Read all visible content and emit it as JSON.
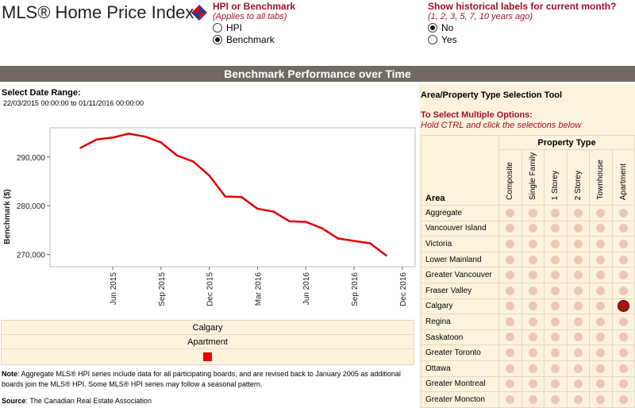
{
  "header": {
    "title": "MLS® Home Price Index",
    "hpi_or_benchmark": {
      "title": "HPI or Benchmark",
      "subtitle": "(Applies to all tabs)",
      "options": [
        {
          "label": "HPI",
          "selected": false
        },
        {
          "label": "Benchmark",
          "selected": true
        }
      ]
    },
    "historical_labels": {
      "title": "Show historical labels for current month?",
      "subtitle": "(1, 2, 3, 5, 7, 10 years ago)",
      "options": [
        {
          "label": "No",
          "selected": true
        },
        {
          "label": "Yes",
          "selected": false
        }
      ]
    }
  },
  "banner": "Benchmark Performance over Time",
  "date_range": {
    "label": "Select Date Range:",
    "value": "22/03/2015 00:00:00 to 01/11/2016 00:00:00"
  },
  "chart_data": {
    "type": "line",
    "title": "",
    "xlabel": "",
    "ylabel": "Benchmark ($)",
    "x_ticks": [
      "Jun 2015",
      "Sep 2015",
      "Dec 2015",
      "Mar 2016",
      "Jun 2016",
      "Sep 2016",
      "Dec 2016"
    ],
    "y_ticks": [
      "270,000",
      "280,000",
      "290,000"
    ],
    "ylim": [
      267500,
      296000
    ],
    "grid": false,
    "series": [
      {
        "name": "",
        "color": "#e00000",
        "x": [
          "2015-04",
          "2015-05",
          "2015-06",
          "2015-07",
          "2015-08",
          "2015-09",
          "2015-10",
          "2015-11",
          "2015-12",
          "2016-01",
          "2016-02",
          "2016-03",
          "2016-04",
          "2016-05",
          "2016-06",
          "2016-07",
          "2016-08",
          "2016-09",
          "2016-10",
          "2016-11"
        ],
        "values": [
          291900,
          293600,
          294000,
          294800,
          294200,
          293000,
          290300,
          289100,
          286200,
          281900,
          281800,
          279400,
          278800,
          276800,
          276700,
          275400,
          273300,
          272800,
          272300,
          269800
        ]
      }
    ]
  },
  "legend": {
    "area": "Calgary",
    "property_type": "Apartment",
    "swatch_color": "#e00000"
  },
  "note": {
    "label": "Note",
    "text": ": Aggregate MLS® HPI series include data for all participating boards, and are revised back to January 2005 as additional boards join the MLS® HPI. Some MLS® HPI series may follow a seasonal pattern."
  },
  "source": {
    "label": "Source",
    "text": ": The Canadian Real Estate Association"
  },
  "selection_tool": {
    "title": "Area/Property Type Selection Tool",
    "multi_title": "To Select Multiple Options:",
    "multi_sub": "Hold CTRL and click the selections below",
    "property_type_header": "Property Type",
    "area_header": "Area",
    "property_types": [
      "Composite",
      "Single Family",
      "1 Storey",
      "2 Storey",
      "Townhouse",
      "Apartment"
    ],
    "areas": [
      "Aggregate",
      "Vancouver Island",
      "Victoria",
      "Lower Mainland",
      "Greater Vancouver",
      "Fraser Valley",
      "Calgary",
      "Regina",
      "Saskatoon",
      "Greater Toronto",
      "Ottawa",
      "Greater Montreal",
      "Greater Moncton"
    ],
    "selected": {
      "area": "Calgary",
      "property_type": "Apartment"
    }
  }
}
